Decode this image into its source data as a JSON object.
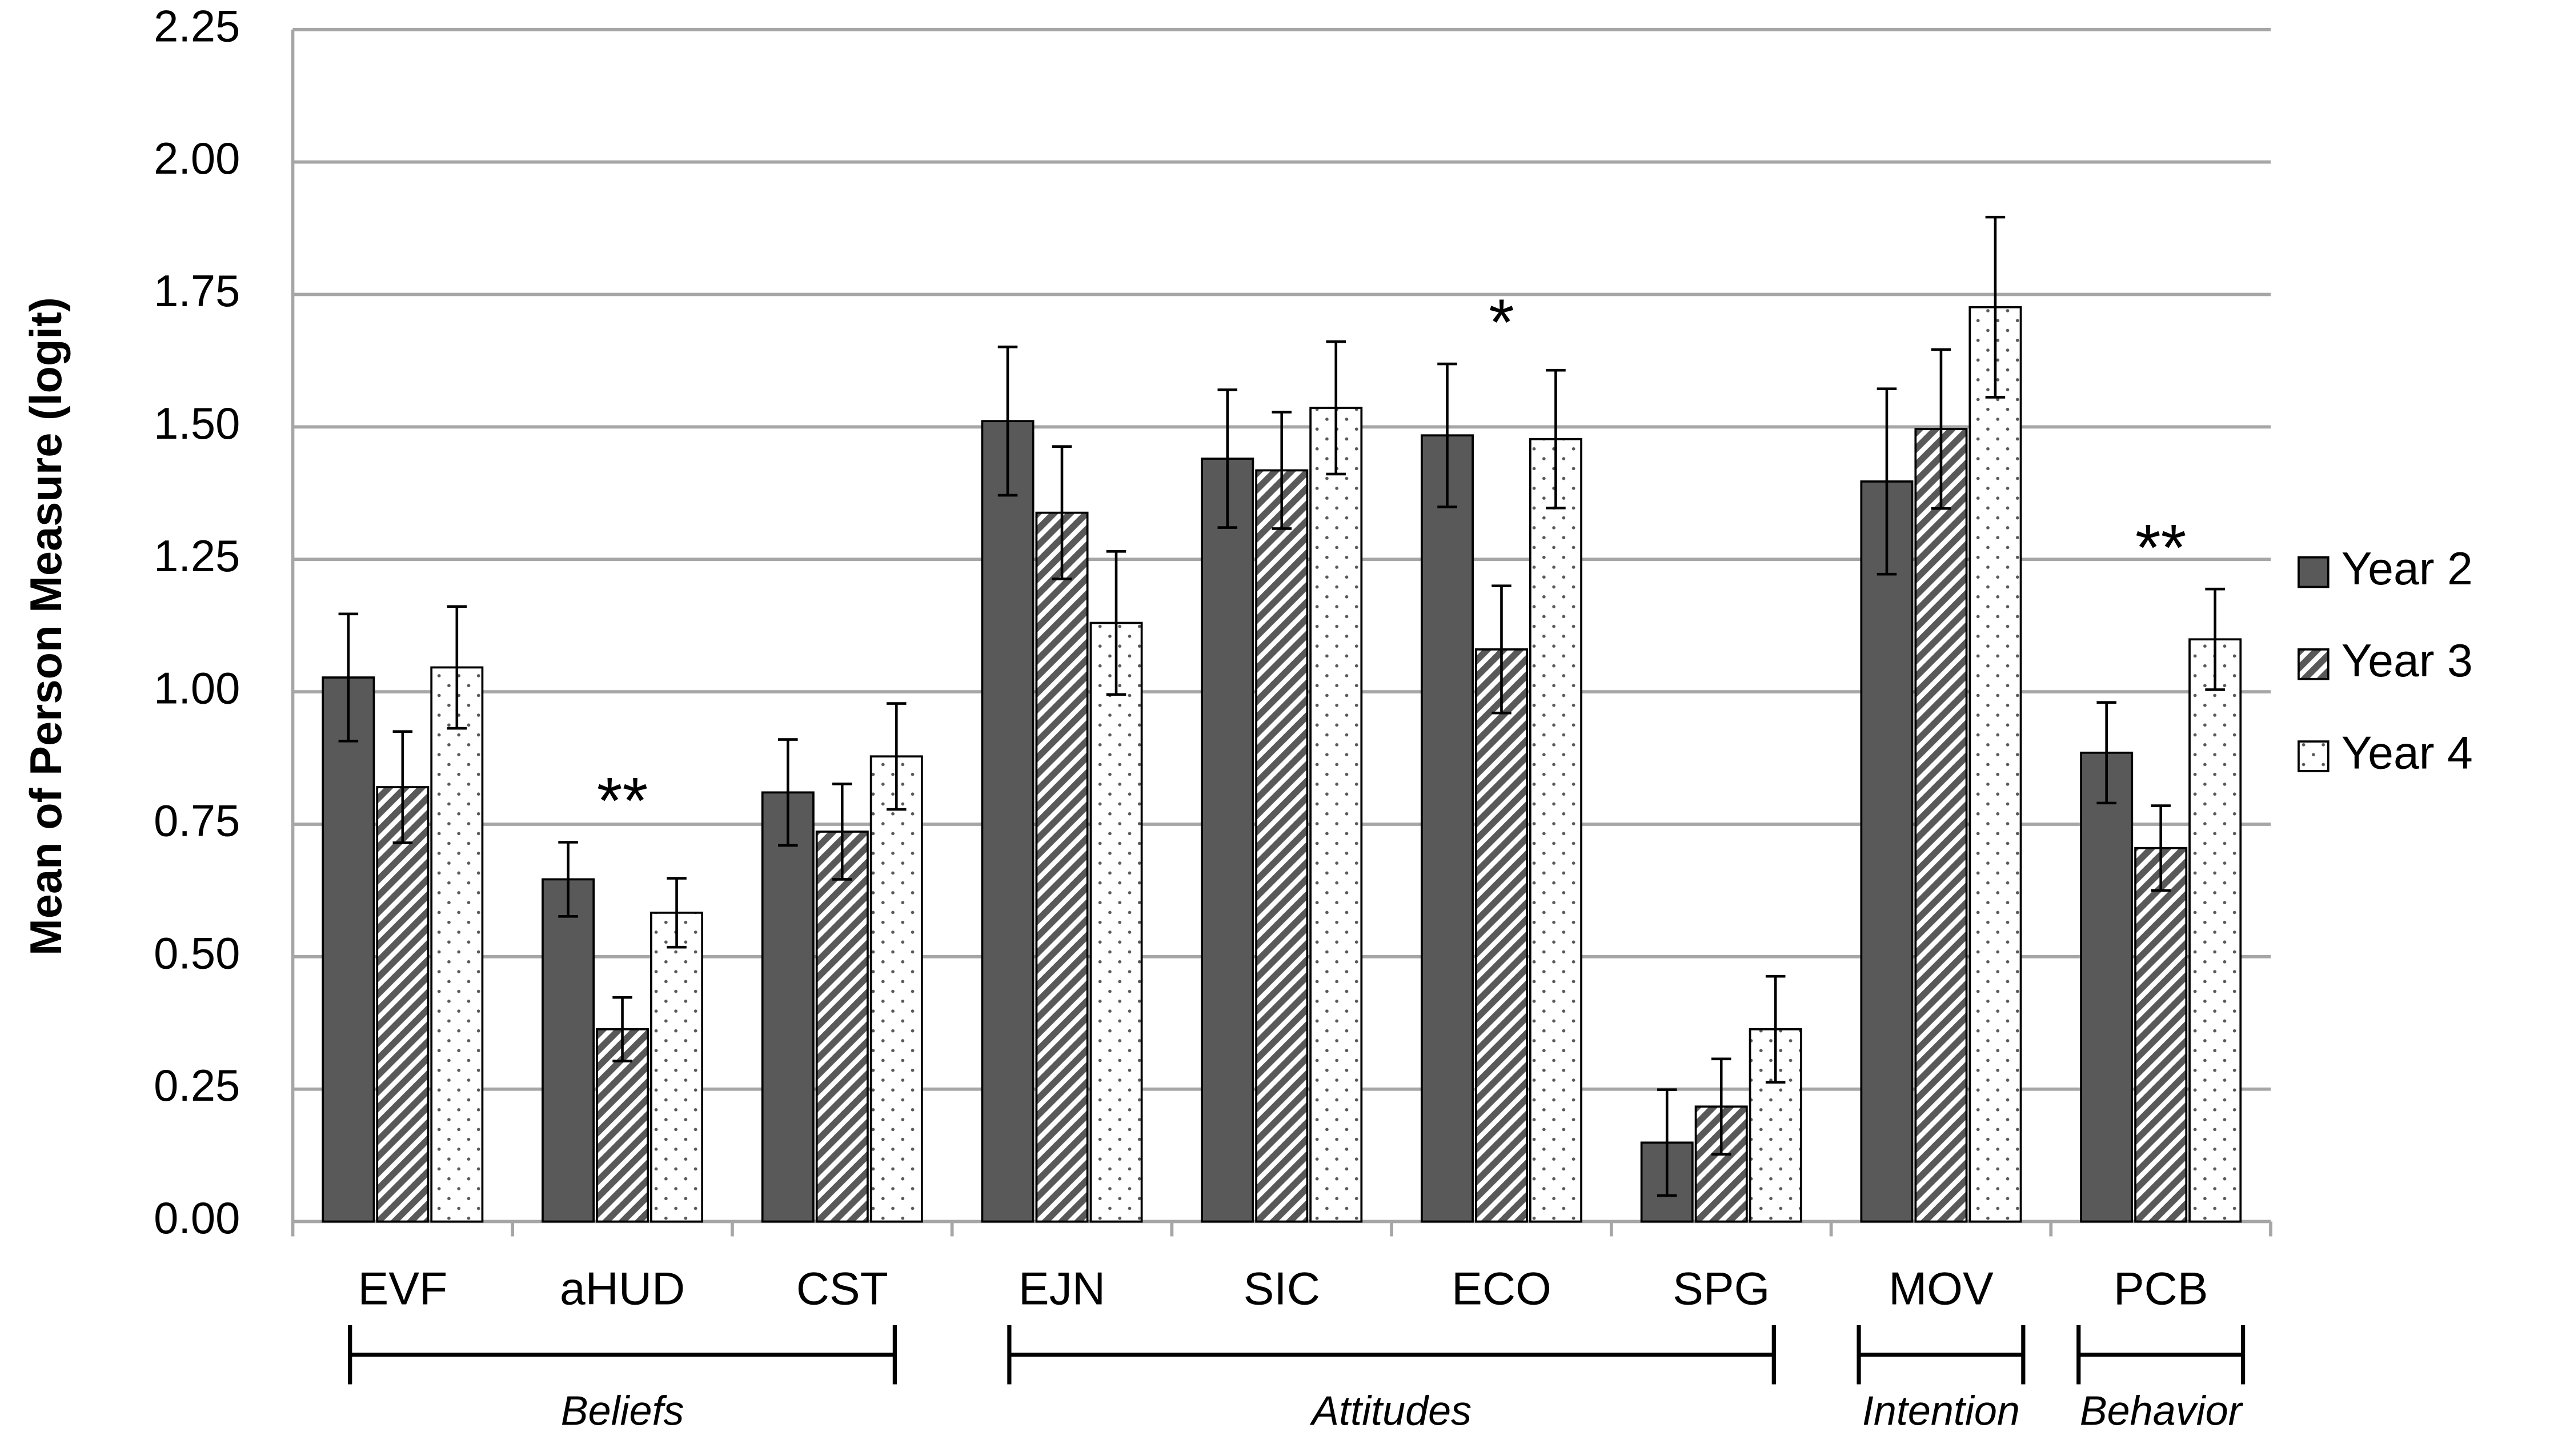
{
  "chart_data": {
    "type": "bar",
    "y_label": "Mean of Person Measure (logit)",
    "categories": [
      "EVF",
      "aHUD",
      "CST",
      "EJN",
      "SIC",
      "ECO",
      "SPG",
      "MOV",
      "PCB"
    ],
    "series": [
      {
        "name": "Year 2",
        "color": "#595959",
        "pattern": "solid",
        "values": [
          1.027,
          0.646,
          0.81,
          1.511,
          1.44,
          1.484,
          0.149,
          1.397,
          0.885
        ],
        "errors": [
          0.12,
          0.07,
          0.1,
          0.14,
          0.13,
          0.135,
          0.1,
          0.175,
          0.095
        ]
      },
      {
        "name": "Year 3",
        "color": "#595959",
        "pattern": "hatch",
        "values": [
          0.82,
          0.363,
          0.736,
          1.338,
          1.418,
          1.08,
          0.217,
          1.496,
          0.705
        ],
        "errors": [
          0.105,
          0.06,
          0.09,
          0.125,
          0.11,
          0.12,
          0.09,
          0.15,
          0.08
        ]
      },
      {
        "name": "Year 4",
        "color": "#595959",
        "pattern": "dots",
        "values": [
          1.046,
          0.583,
          0.878,
          1.13,
          1.536,
          1.477,
          0.363,
          1.726,
          1.099
        ],
        "errors": [
          0.115,
          0.065,
          0.1,
          0.135,
          0.125,
          0.13,
          0.1,
          0.17,
          0.095
        ]
      }
    ],
    "ylim": [
      0,
      2.25
    ],
    "yticks": [
      {
        "value": 0,
        "label": "0.00"
      },
      {
        "value": 0.25,
        "label": "0.25"
      },
      {
        "value": 0.5,
        "label": "0.50"
      },
      {
        "value": 0.75,
        "label": "0.75"
      },
      {
        "value": 1,
        "label": "1.00"
      },
      {
        "value": 1.25,
        "label": "1.25"
      },
      {
        "value": 1.5,
        "label": "1.50"
      },
      {
        "value": 1.75,
        "label": "1.75"
      },
      {
        "value": 2,
        "label": "2.00"
      },
      {
        "value": 2.25,
        "label": "2.25"
      }
    ],
    "grid": true,
    "legend": "right",
    "annotations": [
      {
        "text": "**",
        "category": 1
      },
      {
        "text": "*",
        "category": 5
      },
      {
        "text": "**",
        "category": 8
      }
    ],
    "groups": [
      {
        "label": "Beliefs",
        "span": 3
      },
      {
        "label": "Attitudes",
        "span": 4
      },
      {
        "label": "Intention",
        "span": 1
      },
      {
        "label": "Behavior",
        "span": 1
      }
    ]
  }
}
